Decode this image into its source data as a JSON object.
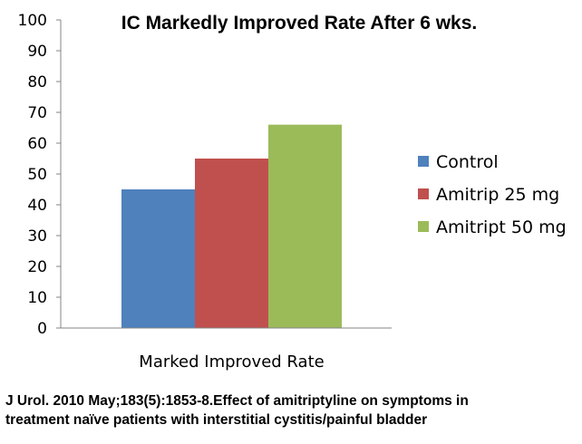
{
  "chart_data": {
    "type": "bar",
    "title": "IC Markedly Improved Rate After 6 wks.",
    "categories": [
      "Marked Improved Rate"
    ],
    "series": [
      {
        "name": "Control",
        "values": [
          45
        ],
        "color": "#4F81BD"
      },
      {
        "name": "Amitrip 25 mg",
        "values": [
          55
        ],
        "color": "#C0504D"
      },
      {
        "name": "Amitript 50 mg",
        "values": [
          66
        ],
        "color": "#9BBB59"
      }
    ],
    "xlabel": "",
    "ylabel": "",
    "ylim": [
      0,
      100
    ],
    "yticks": [
      0,
      10,
      20,
      30,
      40,
      50,
      60,
      70,
      80,
      90,
      100
    ],
    "grid": false,
    "legend": "right"
  },
  "citation": {
    "line1": "J Urol. 2010 May;183(5):1853-8.Effect of amitriptyline on symptoms in",
    "line2": "treatment naïve patients with interstitial cystitis/painful bladder"
  }
}
